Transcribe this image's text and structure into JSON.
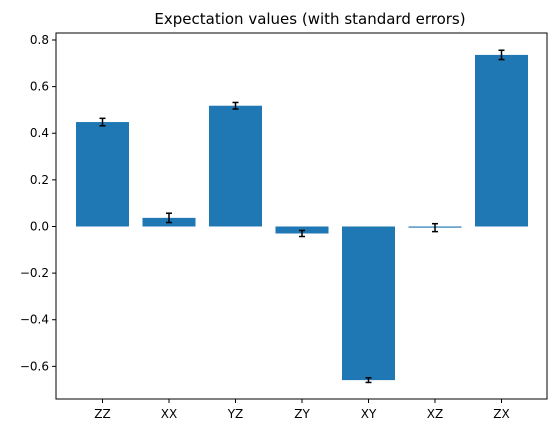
{
  "chart_data": {
    "type": "bar",
    "title": "Expectation values (with standard errors)",
    "xlabel": "",
    "ylabel": "",
    "categories": [
      "ZZ",
      "XX",
      "YZ",
      "ZY",
      "XY",
      "XZ",
      "ZX"
    ],
    "values": [
      0.448,
      0.037,
      0.518,
      -0.03,
      -0.659,
      -0.005,
      0.736
    ],
    "errors": [
      0.016,
      0.02,
      0.014,
      0.013,
      0.01,
      0.017,
      0.02
    ],
    "ylim": [
      -0.74,
      0.83
    ],
    "yticks": [
      -0.6,
      -0.4,
      -0.2,
      0.0,
      0.2,
      0.4,
      0.6,
      0.8
    ],
    "ytick_labels": [
      "−0.6",
      "−0.4",
      "−0.2",
      "0.0",
      "0.2",
      "0.4",
      "0.6",
      "0.8"
    ],
    "bar_color": "#1f77b4",
    "error_color": "#000000",
    "grid": false,
    "legend": "none"
  }
}
